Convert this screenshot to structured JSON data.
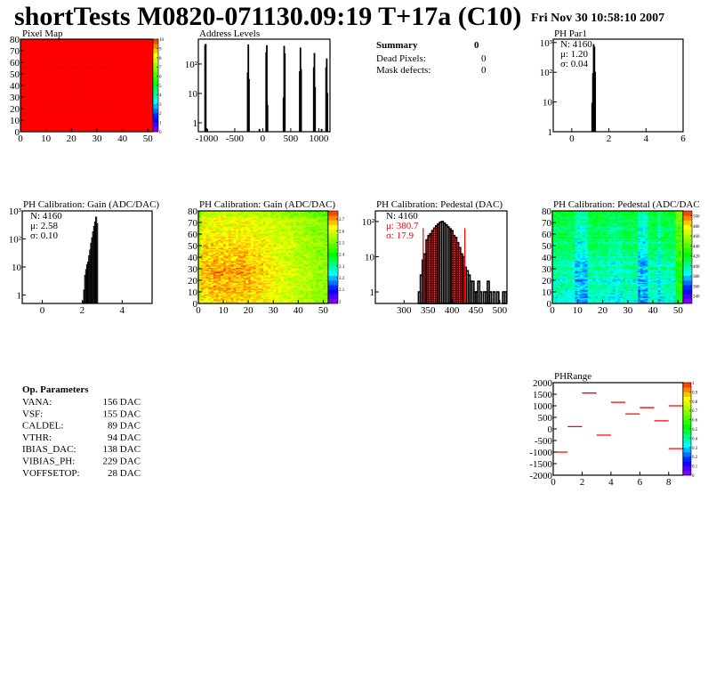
{
  "header": {
    "title": "shortTests M0820-071130.09:19 T+17a (C10)",
    "date": "Fri Nov 30 10:58:10 2007"
  },
  "summary": {
    "title": "Summary",
    "total": "0",
    "rows": [
      {
        "label": "Dead Pixels:",
        "value": "0"
      },
      {
        "label": "Mask defects:",
        "value": "0"
      }
    ]
  },
  "op_parameters": {
    "title": "Op. Parameters",
    "rows": [
      {
        "label": "VANA:",
        "value": "156 DAC"
      },
      {
        "label": "VSF:",
        "value": "155 DAC"
      },
      {
        "label": "CALDEL:",
        "value": "89 DAC"
      },
      {
        "label": "VTHR:",
        "value": "94 DAC"
      },
      {
        "label": "IBIAS_DAC:",
        "value": "138 DAC"
      },
      {
        "label": "VIBIAS_PH:",
        "value": "229 DAC"
      },
      {
        "label": "VOFFSETOP:",
        "value": "28 DAC"
      }
    ]
  },
  "colors": {
    "hist_line": "#000000",
    "fit": "#ff0000",
    "phrange": "#ff0000"
  },
  "chart_data": [
    {
      "id": "pixmap",
      "type": "heatmap",
      "title": "Pixel Map",
      "xlim": [
        0,
        52
      ],
      "ylim": [
        0,
        80
      ],
      "zlim": [
        0,
        10
      ],
      "xticks": [
        0,
        10,
        20,
        30,
        40,
        50
      ],
      "yticks": [
        0,
        10,
        20,
        30,
        40,
        50,
        60,
        70,
        80
      ],
      "zticks": [
        0,
        1,
        2,
        3,
        4,
        5,
        6,
        7,
        8,
        9,
        10
      ],
      "uniform_value": 10
    },
    {
      "id": "addr",
      "type": "bar",
      "title": "Address Levels",
      "log_y": true,
      "xlim": [
        -1150,
        1200
      ],
      "ylim": [
        0.5,
        700
      ],
      "bin_width": 12,
      "xticks": [
        -1000,
        -500,
        0,
        500,
        1000
      ],
      "yticks": [
        {
          "v": 1,
          "label": "1"
        },
        {
          "v": 10,
          "label": "10"
        },
        {
          "v": 100,
          "label": "10²"
        }
      ],
      "x": [
        -1030,
        -1018,
        -990,
        -270,
        -258,
        -246,
        -60,
        60,
        72,
        84,
        370,
        382,
        394,
        660,
        672,
        684,
        910,
        922,
        934,
        1050,
        1130,
        1142,
        1154
      ],
      "values": [
        430,
        470,
        0.6,
        50,
        450,
        30,
        0.6,
        240,
        420,
        4,
        7,
        400,
        220,
        55,
        350,
        65,
        75,
        230,
        16,
        0.6,
        75,
        150,
        10
      ]
    },
    {
      "id": "par1",
      "type": "bar",
      "title": "PH Par1",
      "log_y": true,
      "xlim": [
        -1,
        6
      ],
      "ylim": [
        1,
        1300
      ],
      "bin_width": 0.04,
      "xticks": [
        0,
        2,
        4,
        6
      ],
      "yticks": [
        {
          "v": 1,
          "label": "1"
        },
        {
          "v": 10,
          "label": "10"
        },
        {
          "v": 100,
          "label": "10²"
        },
        {
          "v": 1000,
          "label": "10³"
        }
      ],
      "x": [
        1.1,
        1.14,
        1.18,
        1.22,
        1.26
      ],
      "values": [
        9,
        90,
        850,
        700,
        100
      ],
      "stats": {
        "n": "N: 4160",
        "mean": "μ: 1.20",
        "sigma": "σ: 0.04"
      }
    },
    {
      "id": "gainH",
      "type": "bar",
      "title": "PH Calibration: Gain (ADC/DAC)",
      "log_y": true,
      "xlim": [
        -1,
        5.5
      ],
      "ylim": [
        0.5,
        1000
      ],
      "bin_width": 0.05,
      "xticks": [
        0,
        2,
        4
      ],
      "yticks": [
        {
          "v": 1,
          "label": "1"
        },
        {
          "v": 10,
          "label": "10"
        },
        {
          "v": 100,
          "label": "10²"
        },
        {
          "v": 1000,
          "label": "10³"
        }
      ],
      "x": [
        2.05,
        2.1,
        2.15,
        2.2,
        2.25,
        2.3,
        2.35,
        2.4,
        2.45,
        2.5,
        2.55,
        2.6,
        2.65,
        2.7,
        2.75
      ],
      "values": [
        0.6,
        1.5,
        5,
        8,
        12,
        15,
        25,
        40,
        70,
        110,
        180,
        280,
        400,
        600,
        350
      ],
      "stats": {
        "n": "N: 4160",
        "mean": "μ: 2.58",
        "sigma": "σ: 0.10"
      }
    },
    {
      "id": "gainM",
      "type": "heatmap",
      "title": "PH Calibration: Gain (ADC/DAC)",
      "xlim": [
        0,
        52
      ],
      "ylim": [
        0,
        80
      ],
      "zlim": [
        1.98,
        2.77
      ],
      "xticks": [
        0,
        10,
        20,
        30,
        40,
        50
      ],
      "yticks": [
        0,
        10,
        20,
        30,
        40,
        50,
        60,
        70,
        80
      ],
      "zticks": [
        2,
        2.1,
        2.2,
        2.3,
        2.4,
        2.5,
        2.6,
        2.7
      ]
    },
    {
      "id": "pedH",
      "type": "bar",
      "title": "PH Calibration: Pedestal (DAC)",
      "log_y": true,
      "xlim": [
        240,
        515
      ],
      "ylim": [
        0.47,
        200
      ],
      "bin_width": 4,
      "xticks": [
        300,
        350,
        400,
        450,
        500
      ],
      "yticks": [
        {
          "v": 1,
          "label": "1"
        },
        {
          "v": 10,
          "label": "10"
        },
        {
          "v": 100,
          "label": "10²"
        }
      ],
      "x": [
        332,
        336,
        340,
        344,
        348,
        352,
        356,
        360,
        364,
        368,
        372,
        376,
        380,
        384,
        388,
        392,
        396,
        400,
        404,
        408,
        412,
        416,
        420,
        424,
        428,
        432,
        436,
        440,
        444,
        448,
        452,
        456,
        460,
        464,
        468,
        472,
        476,
        480,
        484,
        488,
        492,
        496,
        500,
        504,
        508,
        512
      ],
      "values": [
        1,
        3,
        8,
        12,
        30,
        40,
        45,
        55,
        65,
        75,
        85,
        95,
        100,
        90,
        80,
        70,
        62,
        55,
        40,
        35,
        25,
        18,
        12,
        10,
        5,
        4,
        3,
        2,
        2,
        1,
        1,
        2,
        1,
        0,
        1,
        1,
        2,
        1,
        0,
        1,
        0,
        1,
        0,
        0,
        1,
        1
      ],
      "fit_range": [
        340,
        427
      ],
      "stats": {
        "n": "N: 4160",
        "mean": "μ: 380.7",
        "sigma": "σ: 17.9"
      }
    },
    {
      "id": "pedM",
      "type": "heatmap",
      "title": "PH Calibration: Pedestal (ADC/DAC",
      "xlim": [
        0,
        52
      ],
      "ylim": [
        0,
        80
      ],
      "zlim": [
        325,
        510
      ],
      "xticks": [
        0,
        10,
        20,
        30,
        40,
        50
      ],
      "yticks": [
        0,
        10,
        20,
        30,
        40,
        50,
        60,
        70,
        80
      ],
      "zticks": [
        340,
        360,
        380,
        400,
        420,
        440,
        460,
        480,
        500
      ]
    },
    {
      "id": "phr",
      "type": "bar",
      "title": "PHRange",
      "xlim": [
        0,
        9
      ],
      "ylim": [
        -2000,
        2000
      ],
      "zlim": [
        0,
        1
      ],
      "xticks": [
        0,
        2,
        4,
        6,
        8
      ],
      "yticks": [
        2000,
        1500,
        1000,
        500,
        0,
        -500,
        -1000,
        -1500,
        -2000
      ],
      "zticks": [
        0,
        0.1,
        0.2,
        0.3,
        0.4,
        0.5,
        0.6,
        0.7,
        0.8,
        0.9,
        1
      ],
      "segments": [
        [
          0,
          1,
          -1000
        ],
        [
          1,
          2,
          100
        ],
        [
          2,
          3,
          1550
        ],
        [
          3,
          4,
          -270
        ],
        [
          4,
          5,
          1150
        ],
        [
          5,
          6,
          650
        ],
        [
          6,
          7,
          920
        ],
        [
          7,
          8,
          350
        ],
        [
          8,
          9,
          1000
        ],
        [
          8,
          9,
          -850
        ]
      ]
    }
  ]
}
